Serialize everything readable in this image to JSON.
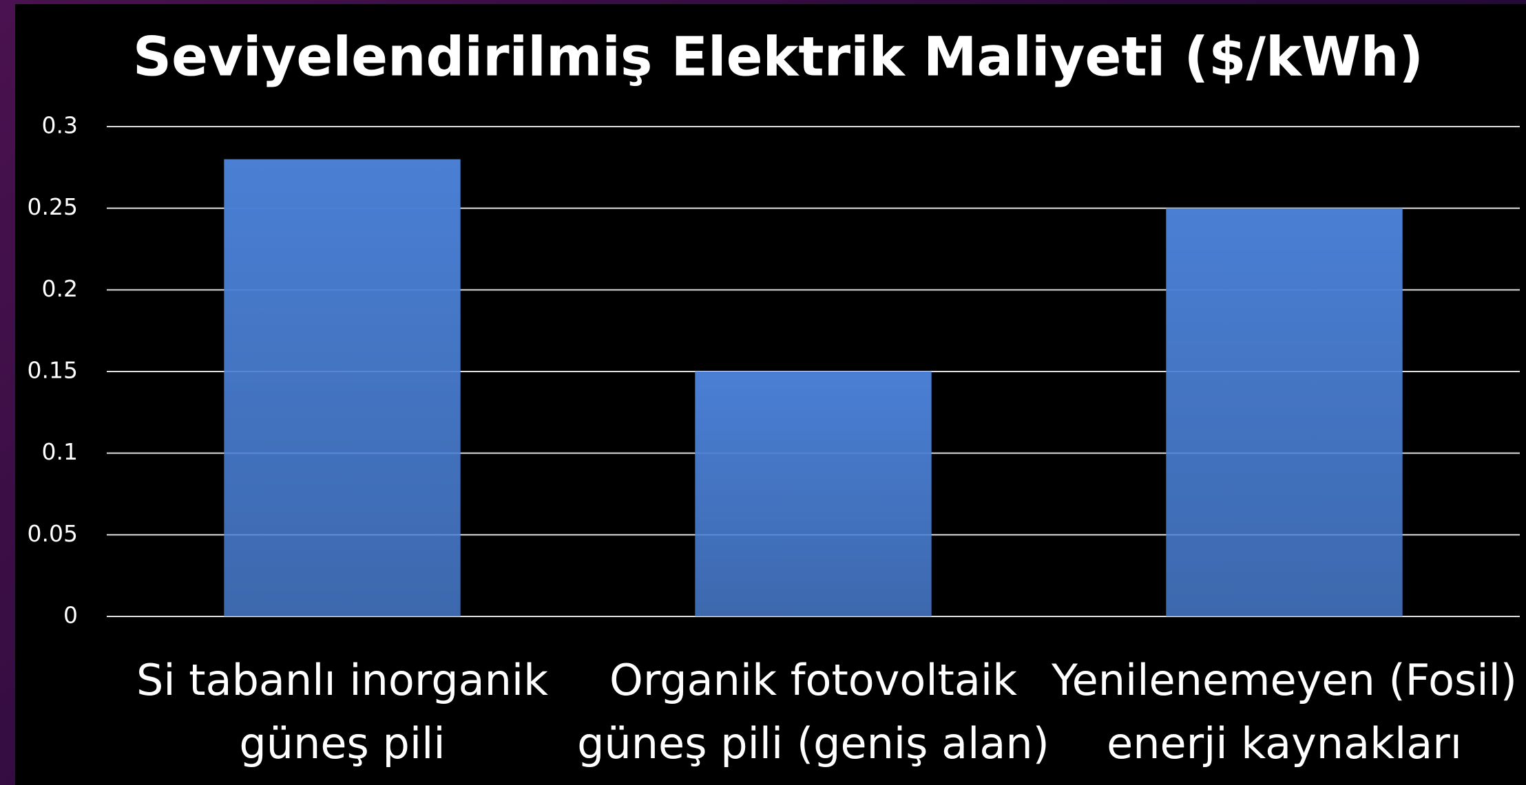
{
  "chart_data": {
    "type": "bar",
    "title": "Seviyelendirilmiş Elektrik Maliyeti ($/kWh)",
    "categories": [
      [
        "Si tabanlı inorganik",
        "güneş pili"
      ],
      [
        "Organik fotovoltaik",
        "güneş pili (geniş alan)"
      ],
      [
        "Yenilenemeyen (Fosil)",
        "enerji kaynakları"
      ]
    ],
    "values": [
      0.28,
      0.15,
      0.25
    ],
    "color": "#4a7fd4",
    "ylim": [
      0,
      0.3
    ],
    "yticks": [
      0,
      0.05,
      0.1,
      0.15,
      0.2,
      0.25,
      0.3
    ],
    "grid": true
  }
}
